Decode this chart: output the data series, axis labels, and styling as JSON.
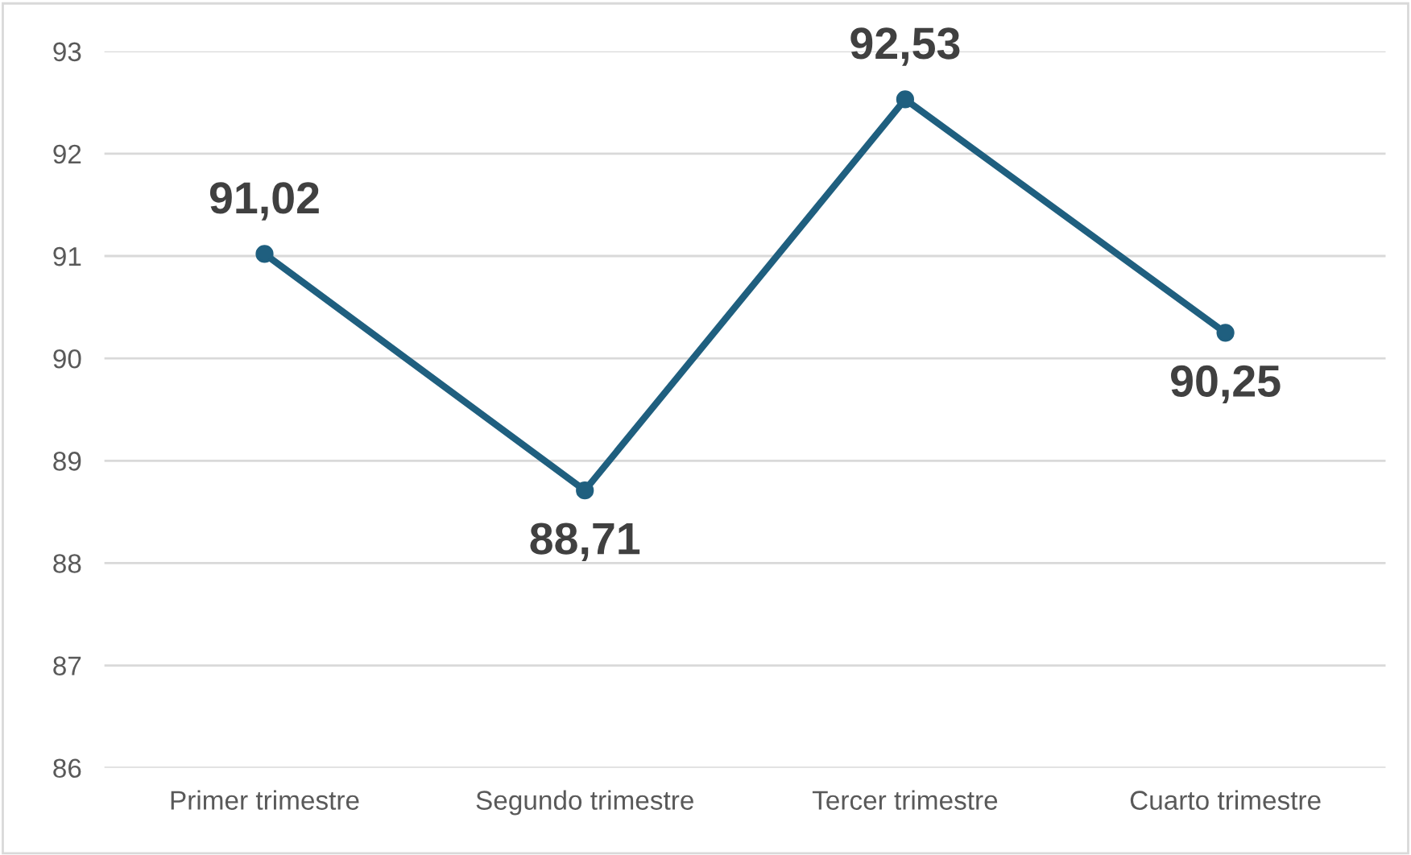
{
  "chart_data": {
    "type": "line",
    "categories": [
      "Primer trimestre",
      "Segundo trimestre",
      "Tercer trimestre",
      "Cuarto trimestre"
    ],
    "series": [
      {
        "color": "#1f5f7f",
        "values": [
          91.02,
          88.71,
          92.53,
          90.25
        ]
      }
    ],
    "value_labels": [
      "91,02",
      "88,71",
      "92,53",
      "90,25"
    ],
    "ylim": [
      86,
      93
    ],
    "yticks": [
      86,
      87,
      88,
      89,
      90,
      91,
      92,
      93
    ],
    "grid": "y",
    "marker": "circle",
    "line_style": "solid",
    "legend": false
  }
}
